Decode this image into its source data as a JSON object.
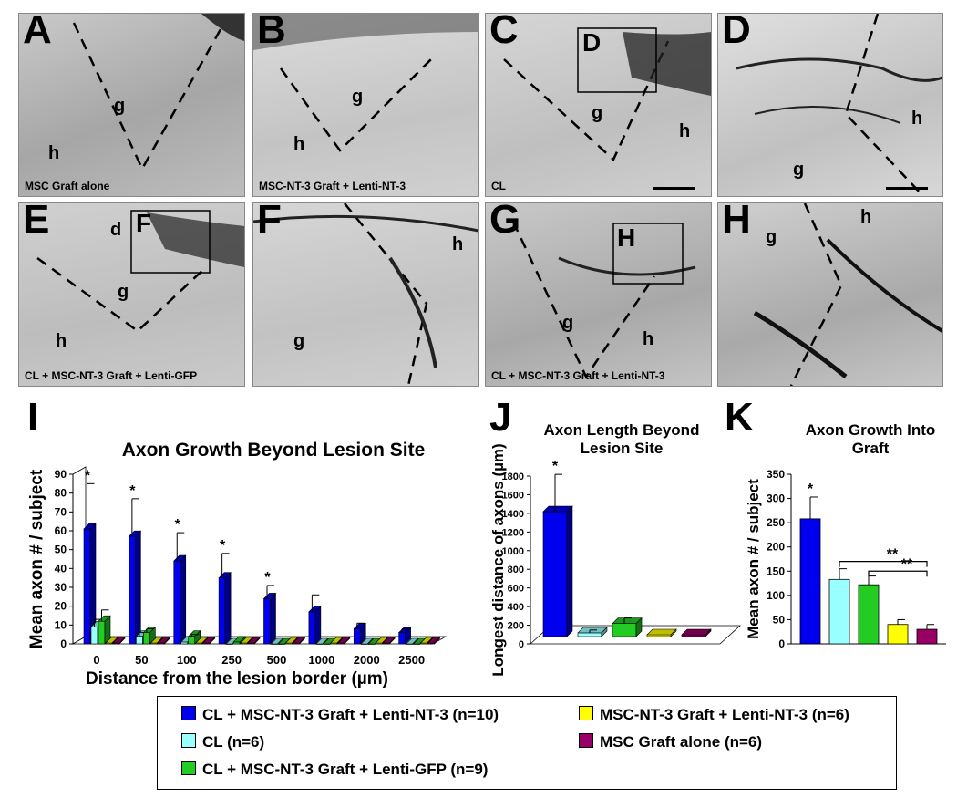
{
  "panels": [
    {
      "letter": "A",
      "caption": "MSC Graft alone",
      "regions": [
        "g",
        "h"
      ],
      "inset": ""
    },
    {
      "letter": "B",
      "caption": "MSC-NT-3 Graft + Lenti-NT-3",
      "regions": [
        "g",
        "h"
      ],
      "inset": ""
    },
    {
      "letter": "C",
      "caption": "CL",
      "regions": [
        "g",
        "h"
      ],
      "inset": "D"
    },
    {
      "letter": "D",
      "caption": "",
      "regions": [
        "h",
        "g"
      ],
      "inset": ""
    },
    {
      "letter": "E",
      "caption": "CL + MSC-NT-3 Graft + Lenti-GFP",
      "regions": [
        "d",
        "g",
        "h"
      ],
      "inset": "F"
    },
    {
      "letter": "F",
      "caption": "",
      "regions": [
        "h",
        "g"
      ],
      "inset": ""
    },
    {
      "letter": "G",
      "caption": "CL + MSC-NT-3 Graft + Lenti-NT-3",
      "regions": [
        "g",
        "h"
      ],
      "inset": "H"
    },
    {
      "letter": "H",
      "caption": "",
      "regions": [
        "h",
        "g"
      ],
      "inset": ""
    }
  ],
  "colors": {
    "CL_NT3_lenti": "#0000ee",
    "CL": "#99ffff",
    "CL_NT3_GFP": "#22cc22",
    "NT3_lenti": "#ffff00",
    "MSC_alone": "#990066"
  },
  "chart_data": [
    {
      "panel_label": "I",
      "type": "bar",
      "title": "Axon Growth Beyond Lesion Site",
      "xlabel": "Distance from the lesion border (µm)",
      "ylabel": "Mean axon # / subject",
      "ylim": [
        0,
        90
      ],
      "yticks": [
        0,
        10,
        20,
        30,
        40,
        50,
        60,
        70,
        80,
        90
      ],
      "categories": [
        "0",
        "50",
        "100",
        "250",
        "500",
        "1000",
        "2000",
        "2500"
      ],
      "series": [
        {
          "name": "CL + MSC-NT-3 Graft + Lenti-NT-3 (n=10)",
          "color": "#0000ee",
          "values": [
            61,
            57,
            44,
            35,
            24,
            17,
            8,
            6
          ],
          "errors": [
            24,
            20,
            15,
            13,
            7,
            9,
            3,
            2
          ]
        },
        {
          "name": "CL (n=6)",
          "color": "#99ffff",
          "values": [
            9,
            4,
            1,
            0,
            0,
            0,
            0,
            0
          ],
          "errors": [
            4,
            2,
            0,
            0,
            0,
            0,
            0,
            0
          ]
        },
        {
          "name": "CL + MSC-NT-3 Graft + Lenti-GFP (n=9)",
          "color": "#22cc22",
          "values": [
            12,
            6,
            4,
            1,
            0,
            0,
            0,
            0
          ],
          "errors": [
            6,
            2,
            1,
            0,
            0,
            0,
            0,
            0
          ]
        },
        {
          "name": "MSC-NT-3 Graft + Lenti-NT-3 (n=6)",
          "color": "#ffff00",
          "values": [
            0,
            0,
            0,
            0,
            0,
            0,
            0,
            0
          ],
          "errors": [
            0,
            0,
            0,
            0,
            0,
            0,
            0,
            0
          ]
        },
        {
          "name": "MSC Graft alone (n=6)",
          "color": "#990066",
          "values": [
            0,
            0,
            0,
            0,
            0,
            0,
            0,
            0
          ],
          "errors": [
            0,
            0,
            0,
            0,
            0,
            0,
            0,
            0
          ]
        }
      ],
      "significance": [
        "*",
        "*",
        "*",
        "*",
        "*",
        "",
        "",
        ""
      ]
    },
    {
      "panel_label": "J",
      "type": "bar",
      "title": "Axon Length Beyond Lesion Site",
      "ylabel": "Longest distance of axons (µm)",
      "ylim": [
        0,
        1800
      ],
      "yticks": [
        0,
        200,
        400,
        600,
        800,
        1000,
        1200,
        1400,
        1600,
        1800
      ],
      "categories": [
        "CL + MSC-NT-3 Graft + Lenti-NT-3",
        "CL",
        "CL + MSC-NT-3 Graft + Lenti-GFP",
        "MSC-NT-3 Graft + Lenti-NT-3",
        "MSC Graft alone"
      ],
      "values": [
        1340,
        40,
        140,
        0,
        0
      ],
      "errors": [
        400,
        30,
        60,
        0,
        0
      ],
      "significance": [
        "*",
        "",
        "",
        "",
        ""
      ]
    },
    {
      "panel_label": "K",
      "type": "bar",
      "title": "Axon Growth Into Graft",
      "ylabel": "Mean axon # / subject",
      "ylim": [
        0,
        350
      ],
      "yticks": [
        0,
        50,
        100,
        150,
        200,
        250,
        300,
        350
      ],
      "categories": [
        "CL + MSC-NT-3 Graft + Lenti-NT-3",
        "CL",
        "CL + MSC-NT-3 Graft + Lenti-GFP",
        "MSC-NT-3 Graft + Lenti-NT-3",
        "MSC Graft alone"
      ],
      "values": [
        258,
        133,
        122,
        40,
        30
      ],
      "errors": [
        45,
        22,
        18,
        10,
        10
      ],
      "significance": [
        "*",
        "",
        "",
        "",
        ""
      ],
      "brackets": [
        {
          "from": 1,
          "to": 4,
          "label": "**"
        },
        {
          "from": 2,
          "to": 4,
          "label": "**"
        }
      ]
    }
  ],
  "legend": [
    {
      "label": "CL + MSC-NT-3 Graft + Lenti-NT-3 (n=10)",
      "color": "#0000ee"
    },
    {
      "label": "MSC-NT-3 Graft + Lenti-NT-3 (n=6)",
      "color": "#ffff00"
    },
    {
      "label": "CL (n=6)",
      "color": "#99ffff"
    },
    {
      "label": "MSC Graft alone (n=6)",
      "color": "#990066"
    },
    {
      "label": "CL + MSC-NT-3 Graft + Lenti-GFP (n=9)",
      "color": "#22cc22"
    }
  ]
}
